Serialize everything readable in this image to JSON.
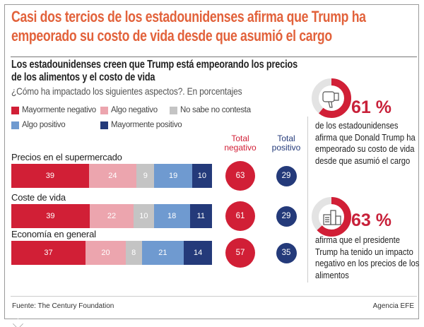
{
  "header": {
    "title": "Casi dos tercios de los estadounidenses afirma que Trump ha empeorado su costo de vida desde que asumió el cargo"
  },
  "chart_data": {
    "type": "bar",
    "stacked": true,
    "orientation": "horizontal",
    "title": "Los estadounidenses creen que Trump está empeorando los precios de los alimentos y el costo de vida",
    "subtitle": "¿Cómo ha impactado los siguientes aspectos?. En porcentajes",
    "categories": [
      "Precios en el supermercado",
      "Coste de vida",
      "Economía en general"
    ],
    "series": [
      {
        "name": "Mayormente negativo",
        "color": "#d11f36",
        "values": [
          39,
          39,
          37
        ]
      },
      {
        "name": "Algo negativo",
        "color": "#eca5ae",
        "values": [
          24,
          22,
          20
        ]
      },
      {
        "name": "No sabe no contesta",
        "color": "#c4c4c4",
        "values": [
          9,
          10,
          8
        ]
      },
      {
        "name": "Algo positivo",
        "color": "#6f9ad0",
        "values": [
          19,
          18,
          21
        ]
      },
      {
        "name": "Mayormente positivo",
        "color": "#243a7a",
        "values": [
          10,
          11,
          14
        ]
      }
    ],
    "totals": [
      {
        "label": "Total negativo",
        "color": "#d11f36",
        "values": [
          63,
          61,
          57
        ]
      },
      {
        "label": "Total positivo",
        "color": "#243a7a",
        "values": [
          29,
          29,
          35
        ]
      }
    ],
    "legend": "top"
  },
  "side": {
    "items": [
      {
        "value": "61 %",
        "fraction": 0.61,
        "icon": "thumbs-down-icon",
        "text": "de los estadounidenses afirma que Donald Trump ha empeorado su costo de vida desde que asumió el cargo"
      },
      {
        "value": "63 %",
        "fraction": 0.63,
        "icon": "groceries-icon",
        "text": "afirma que el presidente Trump ha tenido un impacto negativo en los precios de los alimentos"
      }
    ]
  },
  "footer": {
    "source": "Fuente: The Century Foundation",
    "credit": "Agencia EFE"
  }
}
